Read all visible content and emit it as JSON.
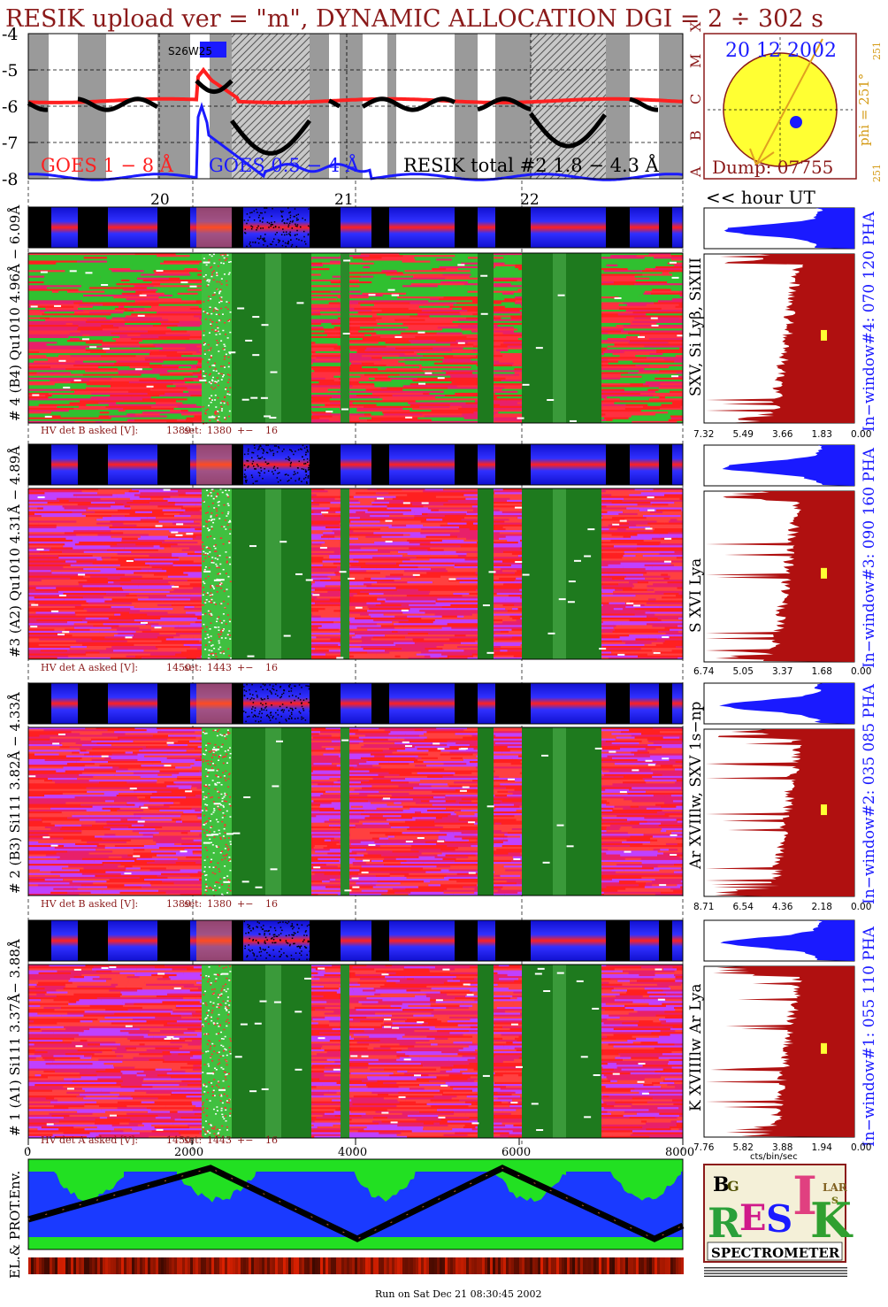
{
  "header": {
    "title": "RESIK upload ver = \"m\", DYNAMIC ALLOCATION  DGI =   2 ÷ 302 s"
  },
  "chart_data": [
    {
      "type": "line",
      "panel": "goes-lightcurve",
      "y_axis": {
        "ticks": [
          "-4",
          "-5",
          "-6",
          "-7",
          "-8"
        ],
        "ylim": [
          -8,
          -4
        ],
        "scale": "log"
      },
      "goes_class_labels": [
        "A",
        "B",
        "C",
        "M",
        "X"
      ],
      "x_axis": {
        "ticks": [
          "20",
          "21",
          "22"
        ],
        "unit_label": "<< hour UT"
      },
      "annotation": "S26W25",
      "grid": true,
      "series": [
        {
          "name": "GOES 1 − 8 Å",
          "color": "#ff2020"
        },
        {
          "name": "GOES 0.5 − 4 Å",
          "color": "#1a1aff"
        },
        {
          "name": "RESIK total #2 1.8 − 4.3 Å",
          "color": "#000000"
        }
      ]
    },
    {
      "type": "heatmap",
      "panel": "sun-disk",
      "date": "20 12 2002",
      "dump": "Dump: 07755",
      "phi_label": "phi = 251°",
      "phi_side_ticks": [
        "251",
        "251"
      ]
    },
    {
      "type": "heatmap",
      "channel": "4",
      "ylabel": "# 4 (B4) Qu1010 4.96Å − 6.09Å",
      "lines_label": "SXV, Si Lyβ, SiXIII",
      "window_label": "In−window#4:  070 120 PHA",
      "hv": {
        "label": "HV det B asked [V]:",
        "asked": "1389",
        "set_label": "set:",
        "set": "1380",
        "pm": "+−",
        "dev": "16"
      },
      "histogram_ticks": [
        "7.32",
        "5.49",
        "3.66",
        "1.83",
        "0.00"
      ]
    },
    {
      "type": "heatmap",
      "channel": "3",
      "ylabel": "#3 (A2) Qu1010  4.31Å − 4.89Å",
      "lines_label": "S XVI Lya",
      "window_label": "In−window#3:  090 160 PHA",
      "hv": {
        "label": "HV det A asked [V]:",
        "asked": "1450",
        "set_label": "set:",
        "set": "1443",
        "pm": "+−",
        "dev": "16"
      },
      "histogram_ticks": [
        "6.74",
        "5.05",
        "3.37",
        "1.68",
        "0.00"
      ]
    },
    {
      "type": "heatmap",
      "channel": "2",
      "ylabel": "# 2 (B3) Si111  3.82Å − 4.33Å",
      "lines_label": "Ar XVIIlw,  SXV  1s−np",
      "window_label": "In−window#2:  035 085 PHA",
      "hv": {
        "label": "HV det B asked [V]:",
        "asked": "1389",
        "set_label": "set:",
        "set": "1380",
        "pm": "+−",
        "dev": "16"
      },
      "histogram_ticks": [
        "8.71",
        "6.54",
        "4.36",
        "2.18",
        "0.00"
      ]
    },
    {
      "type": "heatmap",
      "channel": "1",
      "ylabel": "# 1 (A1) Si111  3.37Å− 3.88Å",
      "lines_label": "K XVIIIlw  Ar Lya",
      "window_label": "In−window#1:  055 110 PHA",
      "hv": {
        "label": "HV det A asked [V]:",
        "asked": "1450",
        "set_label": "set:",
        "set": "1443",
        "pm": "+−",
        "dev": "16"
      },
      "histogram_ticks": [
        "7.76",
        "5.82",
        "3.88",
        "1.94",
        "0.00"
      ],
      "histogram_xlabel": "cts/bin/sec",
      "x_axis": {
        "ticks": [
          "0",
          "2000",
          "4000",
          "6000",
          "8000"
        ]
      }
    },
    {
      "type": "heatmap",
      "panel": "particle-environment",
      "ylabel": "EL.& PROT.Env."
    }
  ],
  "logo": {
    "text": "RESIK",
    "subtitle": "SPECTROMETER",
    "fine_print": ""
  },
  "footer": {
    "run_text": "Run on Sat Dec 21 08:30:45 2002"
  },
  "colors": {
    "title": "#8b1a1a",
    "label_blue": "#1a1aff",
    "label_orange": "#d49a14",
    "hist_fill": "#b01010"
  }
}
